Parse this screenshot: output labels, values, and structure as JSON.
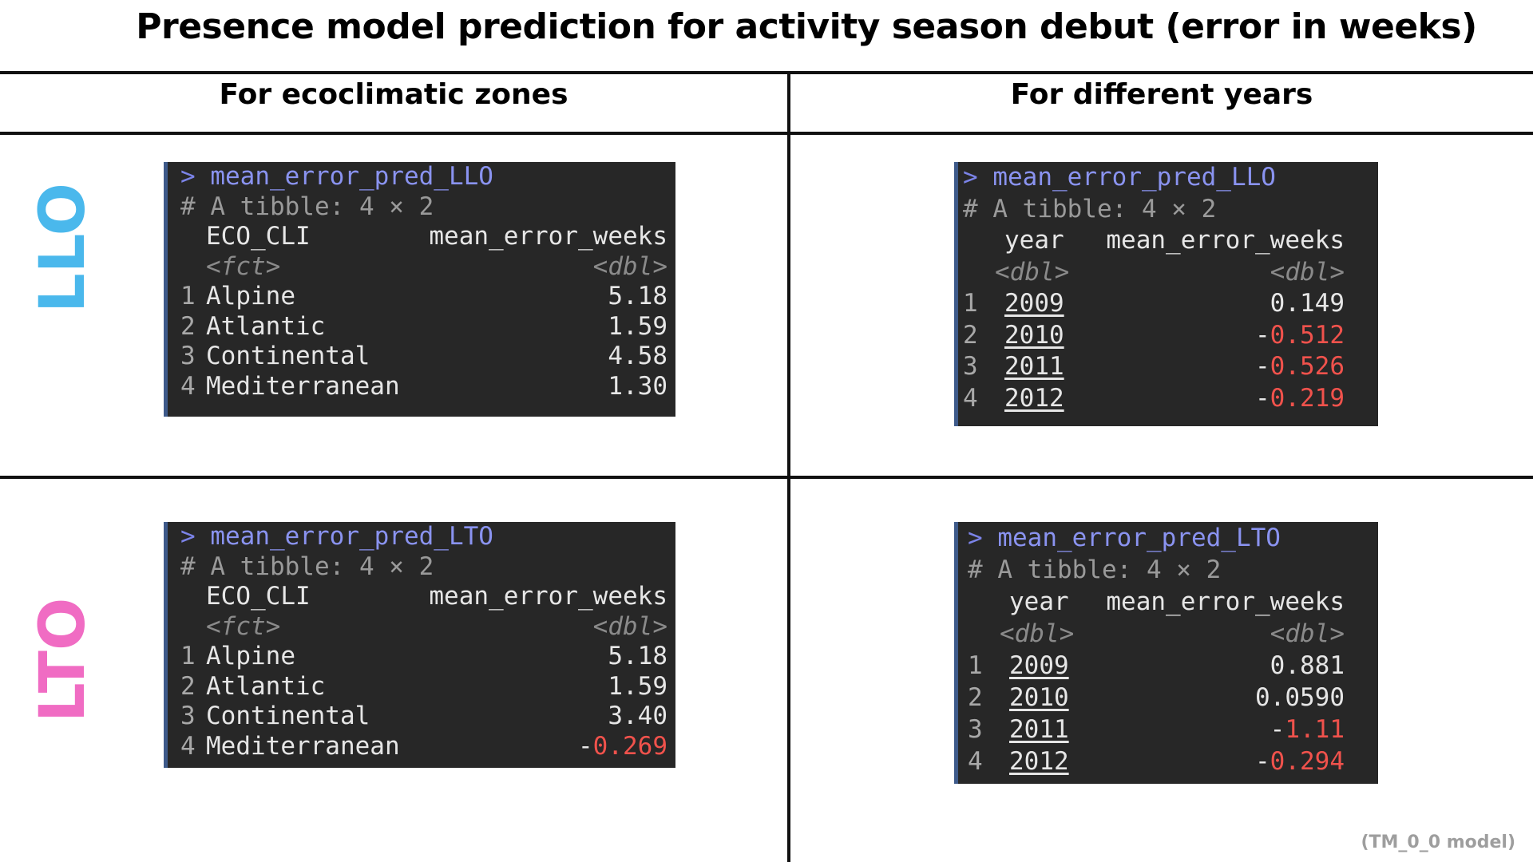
{
  "title": "Presence model prediction for activity season debut (error in weeks)",
  "columns": [
    "For ecoclimatic zones",
    "For different years"
  ],
  "rows": [
    {
      "label": "LLO",
      "color": "#4ab8ec"
    },
    {
      "label": "LTO",
      "color": "#f06cc3"
    }
  ],
  "footnote": "(TM_0_0 model)",
  "colors": {
    "negative": "#f0524c",
    "prompt": "#7b83e8",
    "console_bg": "#272727"
  },
  "panels": {
    "llo_zones": {
      "prompt": ">",
      "command": "mean_error_pred_LLO",
      "tibble": "# A tibble: 4 × 2",
      "headers": [
        "ECO_CLI",
        "mean_error_weeks"
      ],
      "types": [
        "<fct>",
        "<dbl>"
      ],
      "rows": [
        {
          "idx": "1",
          "key": "Alpine",
          "sign": "",
          "val": "5.18"
        },
        {
          "idx": "2",
          "key": "Atlantic",
          "sign": "",
          "val": "1.59"
        },
        {
          "idx": "3",
          "key": "Continental",
          "sign": "",
          "val": "4.58"
        },
        {
          "idx": "4",
          "key": "Mediterranean",
          "sign": "",
          "val": "1.30"
        }
      ]
    },
    "llo_years": {
      "prompt": ">",
      "command": "mean_error_pred_LLO",
      "tibble": "# A tibble: 4 × 2",
      "headers": [
        "year",
        "mean_error_weeks"
      ],
      "types": [
        "<dbl>",
        "<dbl>"
      ],
      "rows": [
        {
          "idx": "1",
          "key": "2009",
          "sign": "",
          "val": "0.149"
        },
        {
          "idx": "2",
          "key": "2010",
          "sign": "-",
          "val": "0.512"
        },
        {
          "idx": "3",
          "key": "2011",
          "sign": "-",
          "val": "0.526"
        },
        {
          "idx": "4",
          "key": "2012",
          "sign": "-",
          "val": "0.219"
        }
      ]
    },
    "lto_zones": {
      "prompt": ">",
      "command": "mean_error_pred_LTO",
      "tibble": "# A tibble: 4 × 2",
      "headers": [
        "ECO_CLI",
        "mean_error_weeks"
      ],
      "types": [
        "<fct>",
        "<dbl>"
      ],
      "rows": [
        {
          "idx": "1",
          "key": "Alpine",
          "sign": "",
          "val": "5.18"
        },
        {
          "idx": "2",
          "key": "Atlantic",
          "sign": "",
          "val": "1.59"
        },
        {
          "idx": "3",
          "key": "Continental",
          "sign": "",
          "val": "3.40"
        },
        {
          "idx": "4",
          "key": "Mediterranean",
          "sign": "-",
          "val": "0.269"
        }
      ]
    },
    "lto_years": {
      "prompt": ">",
      "command": "mean_error_pred_LTO",
      "tibble": "# A tibble: 4 × 2",
      "headers": [
        "year",
        "mean_error_weeks"
      ],
      "types": [
        "<dbl>",
        "<dbl>"
      ],
      "rows": [
        {
          "idx": "1",
          "key": "2009",
          "sign": "",
          "val": "0.881"
        },
        {
          "idx": "2",
          "key": "2010",
          "sign": "",
          "val": "0.0590"
        },
        {
          "idx": "3",
          "key": "2011",
          "sign": "-",
          "val": "1.11"
        },
        {
          "idx": "4",
          "key": "2012",
          "sign": "-",
          "val": "0.294"
        }
      ]
    }
  }
}
